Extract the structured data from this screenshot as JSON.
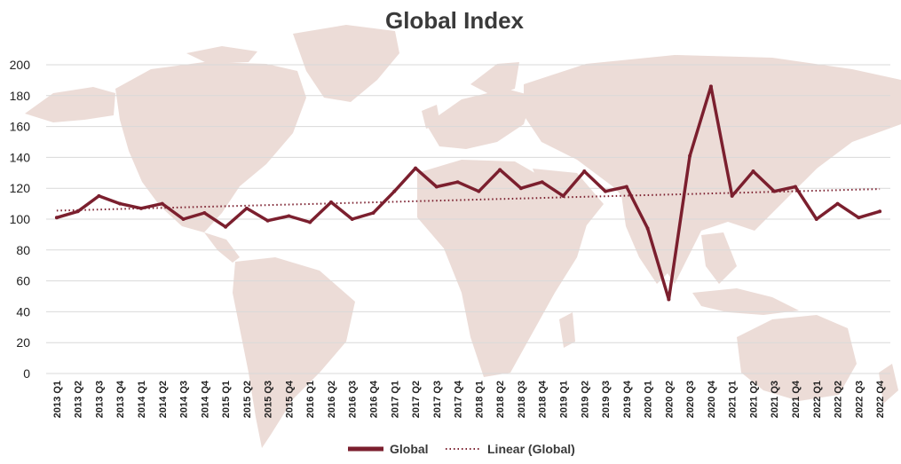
{
  "chart_data": {
    "type": "line",
    "title": "Global Index",
    "xlabel": "",
    "ylabel": "",
    "ylim": [
      0,
      200
    ],
    "yticks": [
      0,
      20,
      40,
      60,
      80,
      100,
      120,
      140,
      160,
      180,
      200
    ],
    "grid": true,
    "legend_position": "bottom",
    "categories": [
      "2013 Q1",
      "2013 Q2",
      "2013 Q3",
      "2013 Q4",
      "2014 Q1",
      "2014 Q2",
      "2014 Q3",
      "2014 Q4",
      "2015 Q1",
      "2015 Q2",
      "2015 Q3",
      "2015 Q4",
      "2016 Q1",
      "2016 Q2",
      "2016 Q3",
      "2016 Q4",
      "2017 Q1",
      "2017 Q2",
      "2017 Q3",
      "2017 Q4",
      "2018 Q1",
      "2018 Q2",
      "2018 Q3",
      "2018 Q4",
      "2019 Q1",
      "2019 Q2",
      "2019 Q3",
      "2019 Q4",
      "2020 Q1",
      "2020 Q2",
      "2020 Q3",
      "2020 Q4",
      "2021 Q1",
      "2021 Q2",
      "2021 Q3",
      "2021 Q4",
      "2022 Q1",
      "2022 Q2",
      "2022 Q3",
      "2022 Q4"
    ],
    "series": [
      {
        "name": "Global",
        "color": "#7b1f2e",
        "style": "solid",
        "values": [
          101,
          105,
          115,
          110,
          107,
          110,
          100,
          104,
          95,
          107,
          99,
          102,
          98,
          111,
          100,
          104,
          118,
          133,
          121,
          124,
          118,
          132,
          120,
          124,
          115,
          131,
          118,
          121,
          94,
          48,
          141,
          186,
          115,
          131,
          118,
          121,
          100,
          110,
          101,
          105
        ]
      },
      {
        "name": "Linear (Global)",
        "color": "#7b1f2e",
        "style": "dotted",
        "trend_start": 105.5,
        "trend_end": 119.5
      }
    ],
    "background": "world-map-icon"
  }
}
